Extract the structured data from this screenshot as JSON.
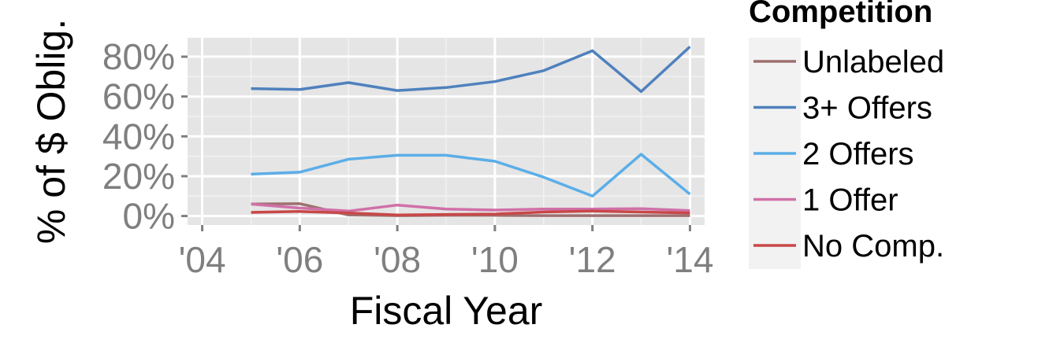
{
  "chart_data": {
    "type": "line",
    "xlabel": "Fiscal Year",
    "ylabel": "% of $ Oblig.",
    "xlim": [
      2003.7,
      2014.3
    ],
    "ylim": [
      -0.045,
      0.895
    ],
    "x_ticks": [
      2004,
      2006,
      2008,
      2010,
      2012,
      2014
    ],
    "x_tick_labels": [
      "'04",
      "'06",
      "'08",
      "'10",
      "'12",
      "'14"
    ],
    "y_ticks": [
      0,
      0.2,
      0.4,
      0.6,
      0.8
    ],
    "y_tick_labels": [
      "0%",
      "20%",
      "40%",
      "60%",
      "80%"
    ],
    "grid": true,
    "legend_title": "Competition",
    "legend_position": "right",
    "x": [
      2005,
      2006,
      2007,
      2008,
      2009,
      2010,
      2011,
      2012,
      2013,
      2014
    ],
    "series": [
      {
        "name": "Unlabeled",
        "color": "#9e7070",
        "values": [
          0.06,
          0.062,
          0.005,
          0.002,
          0.003,
          0.003,
          0.002,
          0.002,
          0.002,
          0.002
        ]
      },
      {
        "name": "3+ Offers",
        "color": "#4f81bd",
        "values": [
          0.64,
          0.635,
          0.67,
          0.63,
          0.645,
          0.675,
          0.73,
          0.83,
          0.625,
          0.85
        ]
      },
      {
        "name": "2 Offers",
        "color": "#5baee8",
        "values": [
          0.21,
          0.22,
          0.285,
          0.305,
          0.305,
          0.275,
          0.195,
          0.1,
          0.31,
          0.11
        ]
      },
      {
        "name": "1 Offer",
        "color": "#d070a8",
        "values": [
          0.06,
          0.04,
          0.025,
          0.055,
          0.035,
          0.03,
          0.035,
          0.035,
          0.037,
          0.027
        ]
      },
      {
        "name": "No Comp.",
        "color": "#c84848",
        "values": [
          0.018,
          0.023,
          0.015,
          0.005,
          0.008,
          0.01,
          0.02,
          0.025,
          0.02,
          0.015
        ]
      }
    ]
  }
}
